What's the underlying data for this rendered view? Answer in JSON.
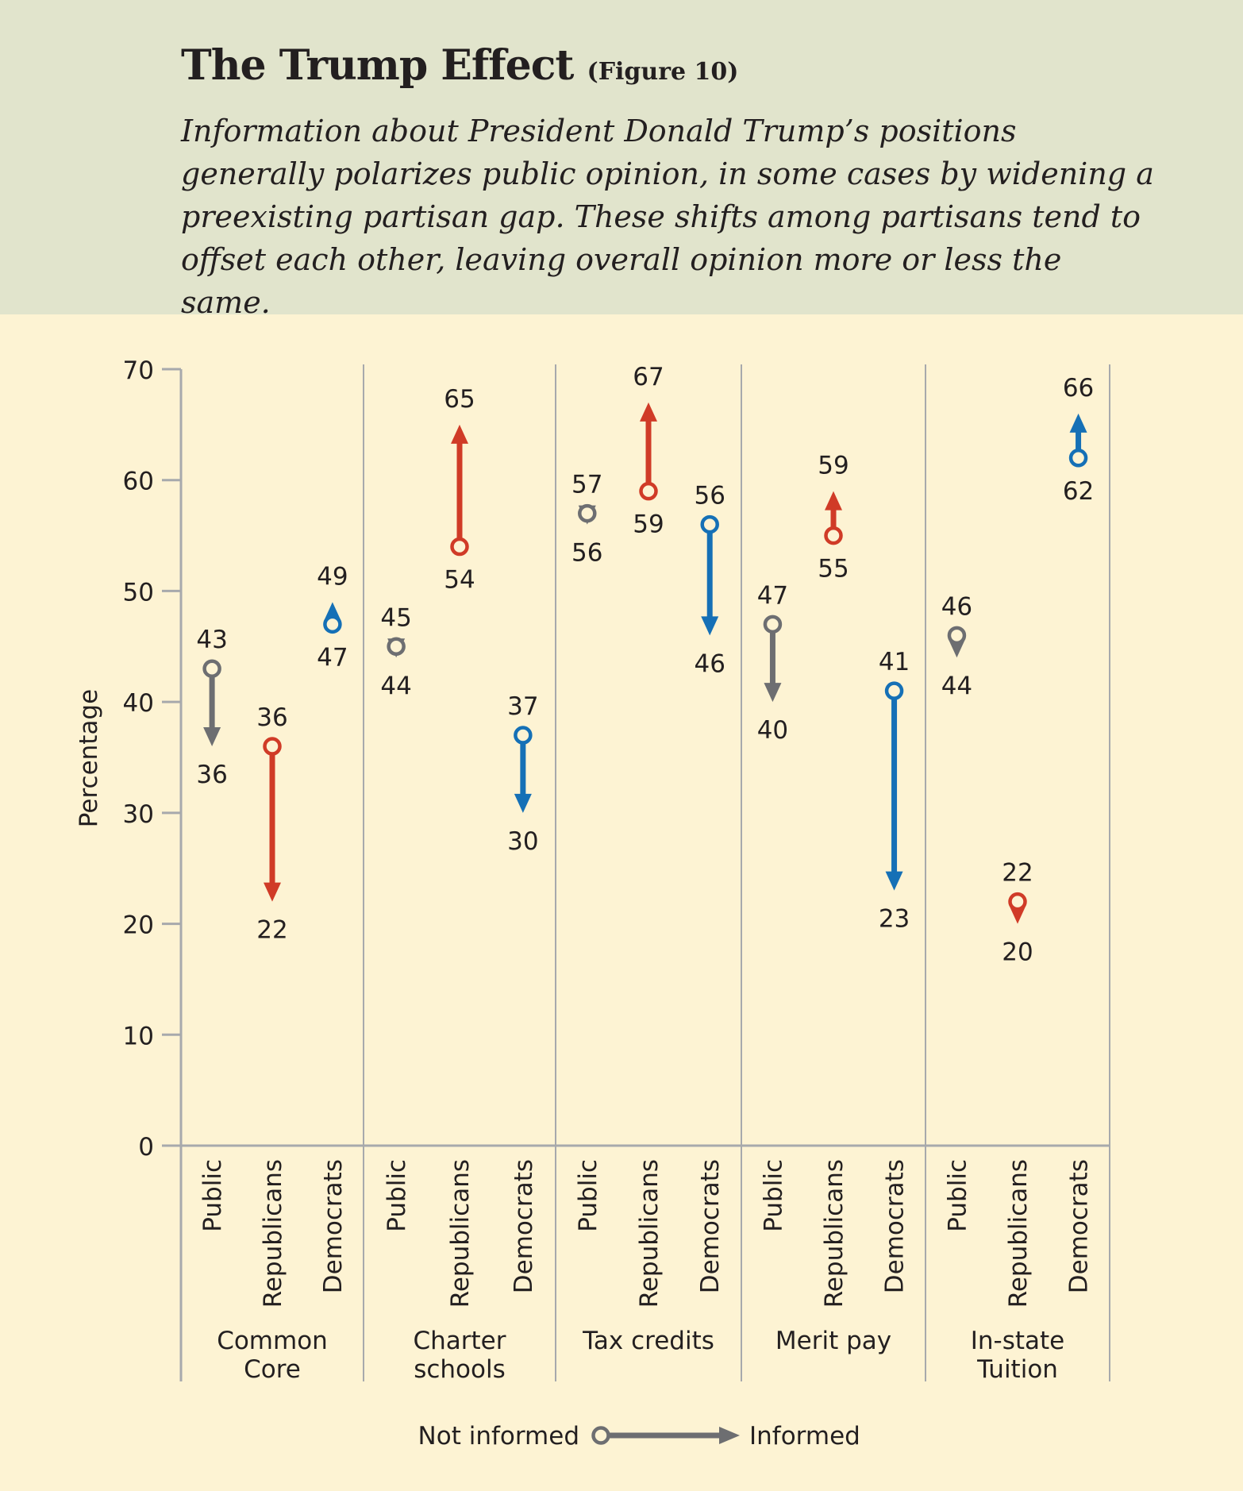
{
  "header": {
    "title": "The Trump Effect",
    "figure_label": "(Figure 10)",
    "subtitle": "Information about President Donald Trump’s positions generally polarizes public opinion, in some cases by widening a preexisting partisan gap. These shifts among partisans tend to offset each other, leaving overall opinion more or less the same."
  },
  "colors": {
    "public": "#6d6e71",
    "republicans": "#d03b27",
    "democrats": "#1570b6",
    "axis": "#a7a9ac",
    "text": "#231f20"
  },
  "legend": {
    "start_label": "Not informed",
    "end_label": "Informed"
  },
  "chart_data": {
    "type": "arrow-dot",
    "ylabel": "Percentage",
    "ylim": [
      0,
      70
    ],
    "yticks": [
      0,
      10,
      20,
      30,
      40,
      50,
      60,
      70
    ],
    "groups": [
      {
        "name": "Common\nCore",
        "items": [
          {
            "category": "Public",
            "not_informed": 43,
            "informed": 36
          },
          {
            "category": "Republicans",
            "not_informed": 36,
            "informed": 22
          },
          {
            "category": "Democrats",
            "not_informed": 47,
            "informed": 49
          }
        ]
      },
      {
        "name": "Charter\nschools",
        "items": [
          {
            "category": "Public",
            "not_informed": 45,
            "informed": 44
          },
          {
            "category": "Republicans",
            "not_informed": 54,
            "informed": 65
          },
          {
            "category": "Democrats",
            "not_informed": 37,
            "informed": 30
          }
        ]
      },
      {
        "name": "Tax credits",
        "items": [
          {
            "category": "Public",
            "not_informed": 57,
            "informed": 56
          },
          {
            "category": "Republicans",
            "not_informed": 59,
            "informed": 67
          },
          {
            "category": "Democrats",
            "not_informed": 56,
            "informed": 46
          }
        ]
      },
      {
        "name": "Merit pay",
        "items": [
          {
            "category": "Public",
            "not_informed": 47,
            "informed": 40
          },
          {
            "category": "Republicans",
            "not_informed": 55,
            "informed": 59
          },
          {
            "category": "Democrats",
            "not_informed": 41,
            "informed": 23
          }
        ]
      },
      {
        "name": "In-state\nTuition",
        "items": [
          {
            "category": "Public",
            "not_informed": 46,
            "informed": 44
          },
          {
            "category": "Republicans",
            "not_informed": 22,
            "informed": 20
          },
          {
            "category": "Democrats",
            "not_informed": 62,
            "informed": 66
          }
        ]
      }
    ]
  }
}
